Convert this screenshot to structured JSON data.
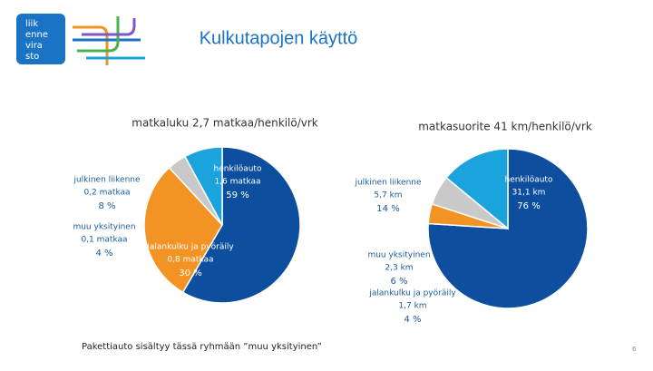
{
  "title": "Kulkutapojen käyttö",
  "logo": [
    "liik",
    "enne",
    "vira",
    "sto"
  ],
  "chart_data": [
    {
      "type": "pie",
      "title": "matkaluku 2,7 matkaa/henkilö/vrk",
      "categories": [
        "henkilöauto",
        "jalankulku ja pyöräily",
        "muu yksityinen",
        "julkinen liikenne"
      ],
      "values": [
        59,
        30,
        4,
        8
      ],
      "value_labels": [
        "59 %",
        "30 %",
        "4 %",
        "8 %"
      ],
      "amount_labels": [
        "1,6 matkaa",
        "0,8 matkaa",
        "0,1 matkaa",
        "0,2 matkaa"
      ],
      "colors": [
        "#0d4f9e",
        "#f39324",
        "#c9c9c9",
        "#1aa3dc"
      ]
    },
    {
      "type": "pie",
      "title": "matkasuorite 41 km/henkilö/vrk",
      "categories": [
        "henkilöauto",
        "jalankulku ja pyöräily",
        "muu yksityinen",
        "julkinen liikenne"
      ],
      "values": [
        76,
        4,
        6,
        14
      ],
      "value_labels": [
        "76 %",
        "4 %",
        "6 %",
        "14 %"
      ],
      "amount_labels": [
        "31,1 km",
        "1,7 km",
        "2,3 km",
        "5,7 km"
      ],
      "colors": [
        "#0d4f9e",
        "#f39324",
        "#c9c9c9",
        "#1aa3dc"
      ]
    }
  ],
  "footnote": "Pakettiauto sisältyy tässä ryhmään ”muu yksityinen”",
  "page_number": "6"
}
